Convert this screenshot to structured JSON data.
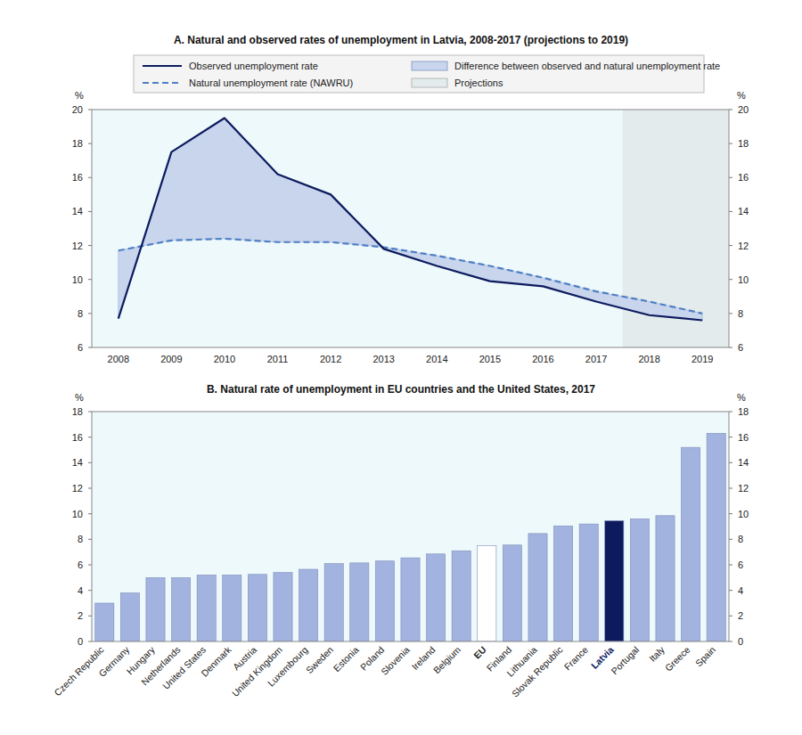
{
  "chart_data": [
    {
      "type": "line",
      "title": "A. Natural and observed rates of unemployment in Latvia, 2008-2017 (projections to 2019)",
      "y_label": "%",
      "categories": [
        "2008",
        "2009",
        "2010",
        "2011",
        "2012",
        "2013",
        "2014",
        "2015",
        "2016",
        "2017",
        "2018",
        "2019"
      ],
      "series": [
        {
          "name": "Observed unemployment rate",
          "color": "#0d1b5e",
          "line_style": "solid",
          "values": [
            7.7,
            17.5,
            19.5,
            16.2,
            15.0,
            11.8,
            10.8,
            9.9,
            9.6,
            8.7,
            7.9,
            7.6
          ]
        },
        {
          "name": "Natural unemployment rate (NAWRU)",
          "color": "#4f7fc4",
          "line_style": "dashed",
          "values": [
            11.7,
            12.3,
            12.4,
            12.2,
            12.2,
            11.9,
            11.4,
            10.8,
            10.1,
            9.3,
            8.7,
            8.0
          ]
        }
      ],
      "difference_area": {
        "name": "Difference between observed and natural unemployment rate",
        "color": "#c8d5ed"
      },
      "projections": {
        "name": "Projections",
        "from": "2018",
        "color": "#e3ebec"
      },
      "ylim": [
        6,
        20
      ],
      "yticks": [
        6,
        8,
        10,
        12,
        14,
        16,
        18,
        20
      ],
      "grid": false,
      "legend": "top"
    },
    {
      "type": "bar",
      "title": "B. Natural rate of unemployment in EU countries and the United States, 2017",
      "y_label": "%",
      "categories": [
        "Czech Republic",
        "Germany",
        "Hungary",
        "Netherlands",
        "United States",
        "Denmark",
        "Austria",
        "United Kingdom",
        "Luxembourg",
        "Sweden",
        "Estonia",
        "Poland",
        "Slovenia",
        "Ireland",
        "Belgium",
        "EU",
        "Finland",
        "Lithuania",
        "Slovak Republic",
        "France",
        "Latvia",
        "Portugal",
        "Italy",
        "Greece",
        "Spain"
      ],
      "values": [
        3.0,
        3.8,
        5.0,
        5.0,
        5.2,
        5.2,
        5.25,
        5.4,
        5.65,
        6.1,
        6.15,
        6.3,
        6.55,
        6.85,
        7.1,
        7.5,
        7.55,
        8.45,
        9.05,
        9.2,
        9.45,
        9.6,
        9.85,
        15.2,
        16.3
      ],
      "color": "#a3b3df",
      "colors": [
        "#a3b3df",
        "#a3b3df",
        "#a3b3df",
        "#a3b3df",
        "#a3b3df",
        "#a3b3df",
        "#a3b3df",
        "#a3b3df",
        "#a3b3df",
        "#a3b3df",
        "#a3b3df",
        "#a3b3df",
        "#a3b3df",
        "#a3b3df",
        "#a3b3df",
        "#ffffff",
        "#a3b3df",
        "#a3b3df",
        "#a3b3df",
        "#a3b3df",
        "#0d1b5e",
        "#a3b3df",
        "#a3b3df",
        "#a3b3df",
        "#a3b3df"
      ],
      "ylim": [
        0,
        18
      ],
      "yticks": [
        0,
        2,
        4,
        6,
        8,
        10,
        12,
        14,
        16,
        18
      ],
      "grid": false
    }
  ]
}
